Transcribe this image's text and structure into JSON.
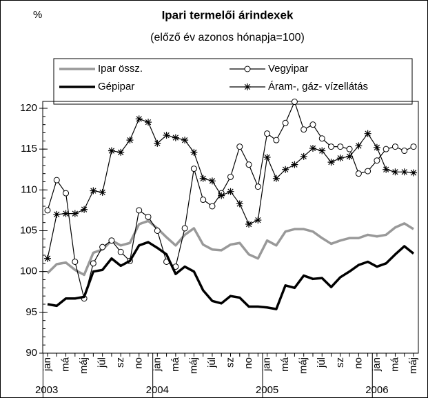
{
  "chart_data": {
    "type": "line",
    "title": "Ipari termelői árindexek",
    "subtitle": "(előző év azonos hónapja=100)",
    "y_label": "%",
    "categories": [
      "jan",
      null,
      "má",
      null,
      "máj",
      null,
      "júl",
      null,
      "sz",
      null,
      "no",
      null,
      "jan",
      null,
      "má",
      null,
      "máj",
      null,
      "júl",
      null,
      "sz",
      null,
      "no",
      null,
      "jan",
      null,
      "má",
      null,
      "máj",
      null,
      "júl",
      null,
      "sz",
      null,
      "no",
      null,
      "jan",
      null,
      "má",
      null,
      "máj"
    ],
    "years": [
      "2003",
      "2004",
      "2005",
      "2006"
    ],
    "ylim": [
      90,
      120
    ],
    "yticks": [
      90,
      95,
      100,
      105,
      110,
      115,
      120
    ],
    "series": [
      {
        "name": "Ipar össz.",
        "color": "#999999",
        "marker": "none",
        "values": [
          99.8,
          100.9,
          101.1,
          100.2,
          99.6,
          102.3,
          102.7,
          103.8,
          103.2,
          103.5,
          105.8,
          106.2,
          105.3,
          104.2,
          103.2,
          104.5,
          105.3,
          103.3,
          102.7,
          102.6,
          103.3,
          103.5,
          102.1,
          101.6,
          103.8,
          103.2,
          104.9,
          105.2,
          105.2,
          104.9,
          104.1,
          103.4,
          103.8,
          104.1,
          104.1,
          104.5,
          104.3,
          104.5,
          105.4,
          105.9,
          105.2
        ]
      },
      {
        "name": "Vegyipar",
        "color": "#000000",
        "marker": "circle",
        "values": [
          107.5,
          111.2,
          109.6,
          101.2,
          96.7,
          101.0,
          103.0,
          103.8,
          102.4,
          101.3,
          107.5,
          106.7,
          105.0,
          101.2,
          100.6,
          105.3,
          112.6,
          108.8,
          108.0,
          109.6,
          111.6,
          115.3,
          113.1,
          110.4,
          116.9,
          116.1,
          118.2,
          120.8,
          117.4,
          118.0,
          116.3,
          115.3,
          115.3,
          115.0,
          112.0,
          112.3,
          113.6,
          115.0,
          115.3,
          114.8,
          115.3
        ]
      },
      {
        "name": "Gépipar",
        "color": "#000000",
        "marker": "none",
        "values": [
          96.0,
          95.8,
          96.7,
          96.7,
          96.9,
          100.0,
          100.2,
          101.6,
          100.7,
          101.3,
          103.2,
          103.6,
          102.9,
          102.1,
          99.7,
          100.6,
          100.0,
          97.7,
          96.4,
          96.1,
          97.0,
          96.8,
          95.7,
          95.7,
          95.6,
          95.4,
          98.3,
          98.0,
          99.5,
          99.1,
          99.2,
          98.1,
          99.3,
          100.0,
          100.8,
          101.2,
          100.6,
          101.0,
          102.1,
          103.1,
          102.2
        ]
      },
      {
        "name": "Áram-, gáz- vízellátás",
        "color": "#000000",
        "marker": "star",
        "values": [
          101.6,
          107.0,
          107.1,
          107.1,
          107.6,
          109.9,
          109.7,
          114.8,
          114.6,
          116.1,
          118.7,
          118.3,
          115.7,
          116.7,
          116.4,
          116.1,
          114.6,
          111.4,
          111.1,
          109.3,
          109.8,
          108.3,
          105.8,
          106.3,
          114.0,
          111.4,
          112.5,
          113.1,
          114.1,
          115.1,
          114.8,
          113.4,
          113.9,
          114.1,
          115.4,
          116.9,
          115.2,
          112.5,
          112.2,
          112.2,
          112.1
        ]
      }
    ]
  }
}
